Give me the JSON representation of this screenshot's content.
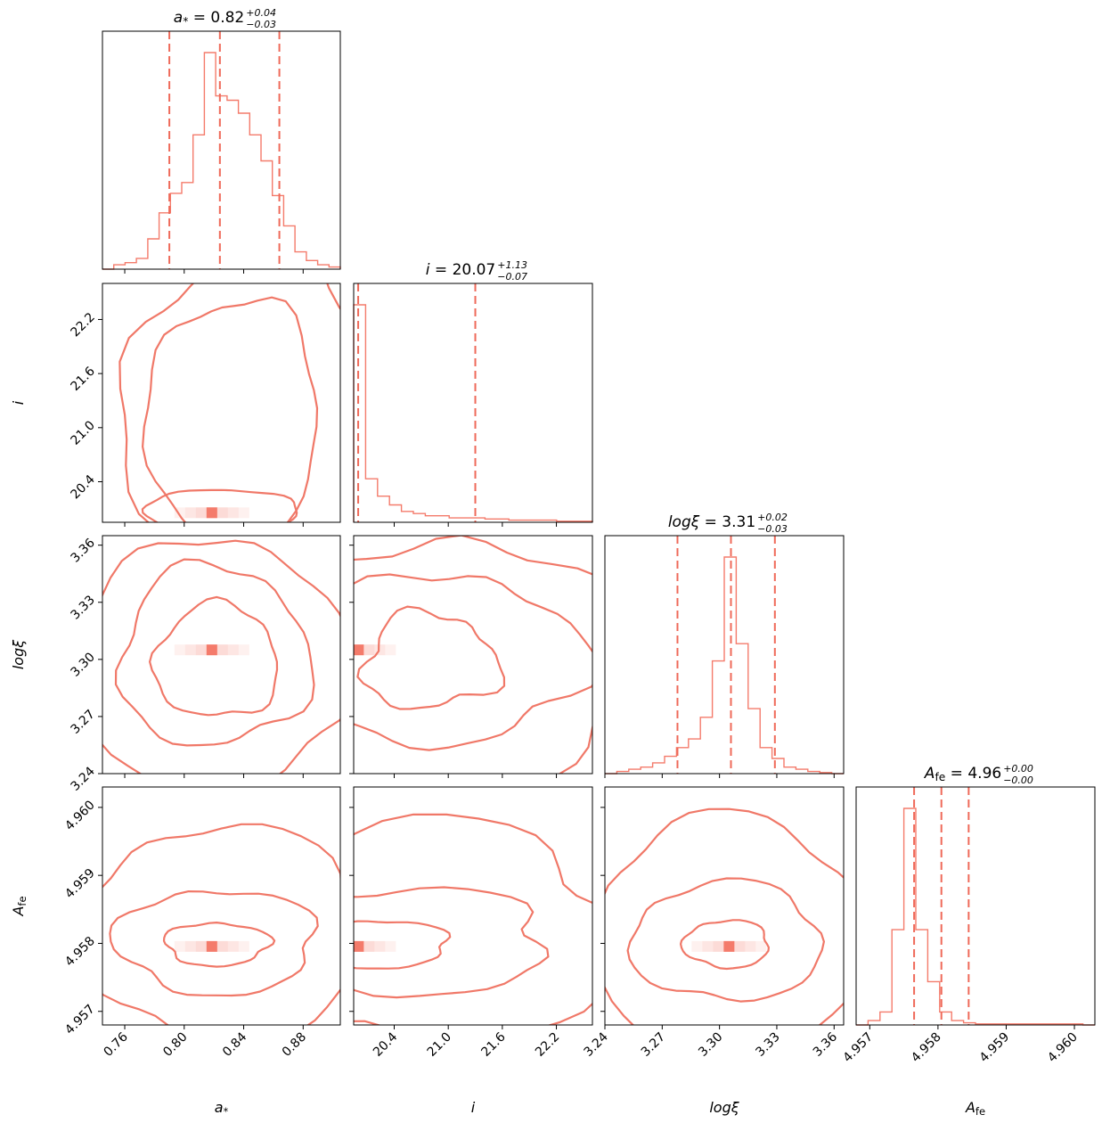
{
  "chart_data": {
    "type": "corner",
    "color": "#f47b6b",
    "parameters": [
      {
        "key": "a",
        "label_main": "a",
        "label_sub": "*",
        "title_value": "0.82",
        "title_plus": "+0.04",
        "title_minus": "−0.03",
        "range": [
          0.745,
          0.905
        ],
        "ticks": [
          0.76,
          0.8,
          0.84,
          0.88
        ],
        "tick_labels": [
          "0.76",
          "0.80",
          "0.84",
          "0.88"
        ],
        "quantiles": [
          0.79,
          0.824,
          0.864
        ],
        "hist_bins": [
          0.0,
          0.02,
          0.03,
          0.05,
          0.14,
          0.26,
          0.35,
          0.4,
          0.62,
          1.0,
          0.8,
          0.78,
          0.72,
          0.62,
          0.5,
          0.34,
          0.2,
          0.08,
          0.04,
          0.02,
          0.01
        ]
      },
      {
        "key": "i",
        "label_main": "i",
        "label_sub": "",
        "title_value": "20.07",
        "title_plus": "+1.13",
        "title_minus": "−0.07",
        "range": [
          19.95,
          22.6
        ],
        "ticks": [
          20.4,
          21.0,
          21.6,
          22.2
        ],
        "tick_labels": [
          "20.4",
          "21.0",
          "21.6",
          "22.2"
        ],
        "quantiles": [
          20.0,
          21.3
        ],
        "hist_bins": [
          1.0,
          0.2,
          0.12,
          0.08,
          0.05,
          0.04,
          0.03,
          0.03,
          0.02,
          0.02,
          0.02,
          0.015,
          0.015,
          0.01,
          0.01,
          0.01,
          0.01,
          0.005,
          0.005,
          0.005
        ]
      },
      {
        "key": "logxi",
        "label_main": "logξ",
        "label_sub": "",
        "title_value": "3.31",
        "title_plus": "+0.02",
        "title_minus": "−0.03",
        "range": [
          3.24,
          3.365
        ],
        "ticks": [
          3.24,
          3.27,
          3.3,
          3.33,
          3.36
        ],
        "tick_labels": [
          "3.24",
          "3.27",
          "3.30",
          "3.33",
          "3.36"
        ],
        "quantiles": [
          3.278,
          3.306,
          3.329
        ],
        "hist_bins": [
          0.0,
          0.01,
          0.02,
          0.03,
          0.05,
          0.08,
          0.12,
          0.16,
          0.26,
          0.52,
          1.0,
          0.6,
          0.3,
          0.12,
          0.07,
          0.03,
          0.02,
          0.01,
          0.005,
          0.0
        ]
      },
      {
        "key": "afe",
        "label_main": "A",
        "label_sub": "fe",
        "title_value": "4.96",
        "title_plus": "+0.00",
        "title_minus": "−0.00",
        "range": [
          4.9568,
          4.9603
        ],
        "ticks": [
          4.957,
          4.958,
          4.959,
          4.96
        ],
        "tick_labels": [
          "4.957",
          "4.958",
          "4.959",
          "4.960"
        ],
        "quantiles": [
          4.95765,
          4.95805,
          4.95845
        ],
        "hist_bins": [
          0.0,
          0.02,
          0.06,
          0.44,
          1.0,
          0.44,
          0.2,
          0.06,
          0.02,
          0.01,
          0.005,
          0.005,
          0.005,
          0.005,
          0.005,
          0.005,
          0.005,
          0.005,
          0.005,
          0.0
        ]
      }
    ]
  }
}
